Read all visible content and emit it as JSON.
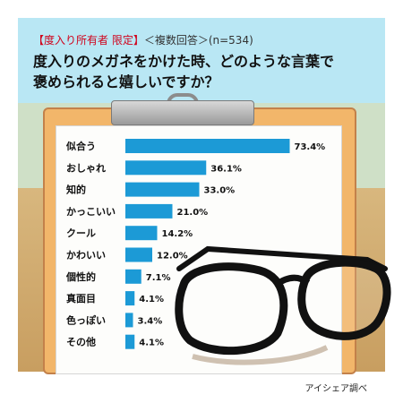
{
  "header": {
    "subtitle_bracket": "【度入り所有者 限定】",
    "subtitle_rest": "＜複数回答＞(n=534)",
    "title_line1": "度入りのメガネをかけた時、どのような言葉で",
    "title_line2": "褒められると嬉しいですか？"
  },
  "source": "アイシェア調べ",
  "colors": {
    "bar": "#1c9ad6",
    "header_bg": "#b9e7f4",
    "accent": "#d0021b"
  },
  "chart_data": {
    "type": "bar",
    "orientation": "horizontal",
    "categories": [
      "似合う",
      "おしゃれ",
      "知的",
      "かっこいい",
      "クール",
      "かわいい",
      "個性的",
      "真面目",
      "色っぽい",
      "その他"
    ],
    "values": [
      73.4,
      36.1,
      33.0,
      21.0,
      14.2,
      12.0,
      7.1,
      4.1,
      3.4,
      4.1
    ],
    "value_labels": [
      "73.4%",
      "36.1%",
      "33.0%",
      "21.0%",
      "14.2%",
      "12.0%",
      "7.1%",
      "4.1%",
      "3.4%",
      "4.1%"
    ],
    "xlim": [
      0,
      100
    ]
  }
}
